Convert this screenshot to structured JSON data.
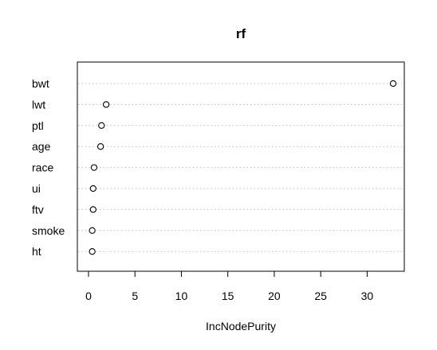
{
  "chart_data": {
    "type": "scatter",
    "title": "rf",
    "xlabel": "IncNodePurity",
    "ylabel": "",
    "categories": [
      "bwt",
      "lwt",
      "ptl",
      "age",
      "race",
      "ui",
      "ftv",
      "smoke",
      "ht"
    ],
    "values": [
      32.8,
      1.9,
      1.4,
      1.3,
      0.6,
      0.5,
      0.5,
      0.4,
      0.4
    ],
    "xlim": [
      -1.2,
      34.0
    ],
    "xticks": [
      "0",
      "5",
      "10",
      "15",
      "20",
      "25",
      "30"
    ],
    "grid": "dotted-horizontal",
    "point_style": "open-circle"
  }
}
